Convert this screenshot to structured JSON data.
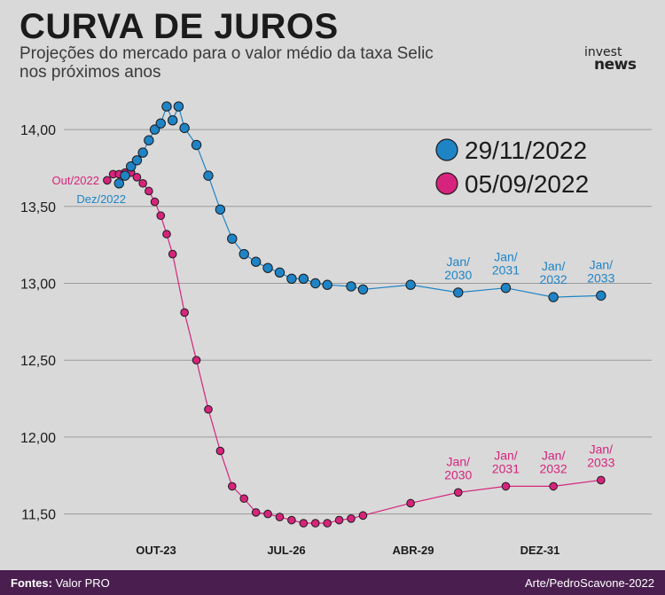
{
  "header": {
    "title": "CURVA DE JUROS",
    "subtitle": "Projeções do mercado para o valor médio da taxa Selic nos próximos anos",
    "logo_top": "invest",
    "logo_bottom": "news"
  },
  "footer": {
    "source_label": "Fontes:",
    "source_value": "Valor PRO",
    "credit": "Arte/PedroScavone-2022"
  },
  "colors": {
    "series_blue": "#1f84c6",
    "series_pink": "#d6247c",
    "grid": "#9a9a9a",
    "text": "#1b1b1b"
  },
  "chart_data": {
    "type": "line",
    "title": "CURVA DE JUROS",
    "xlabel": "",
    "ylabel": "",
    "ylim": [
      11.4,
      14.2
    ],
    "y_ticks": [
      "11,50",
      "12,00",
      "12,50",
      "13,00",
      "13,50",
      "14,00"
    ],
    "x_ticks": [
      "OUT-23",
      "JUL-26",
      "ABR-29",
      "DEZ-31"
    ],
    "grid": true,
    "legend_position": "top-right",
    "series": [
      {
        "name": "29/11/2022",
        "color": "#1f84c6",
        "start_label": "Dez/2022",
        "points": [
          [
            0,
            13.65
          ],
          [
            1,
            13.7
          ],
          [
            2,
            13.76
          ],
          [
            3,
            13.8
          ],
          [
            4,
            13.85
          ],
          [
            5,
            13.93
          ],
          [
            6,
            14.0
          ],
          [
            7,
            14.04
          ],
          [
            8,
            14.15
          ],
          [
            9,
            14.06
          ],
          [
            10,
            14.15
          ],
          [
            11,
            14.01
          ],
          [
            13,
            13.9
          ],
          [
            15,
            13.7
          ],
          [
            17,
            13.48
          ],
          [
            19,
            13.29
          ],
          [
            21,
            13.19
          ],
          [
            23,
            13.14
          ],
          [
            25,
            13.1
          ],
          [
            27,
            13.07
          ],
          [
            29,
            13.03
          ],
          [
            31,
            13.03
          ],
          [
            33,
            13.0
          ],
          [
            35,
            12.99
          ],
          [
            39,
            12.98
          ],
          [
            41,
            12.96
          ],
          [
            49,
            12.99
          ],
          [
            57,
            12.94
          ],
          [
            65,
            12.97
          ],
          [
            73,
            12.91
          ],
          [
            81,
            12.92
          ]
        ],
        "point_labels": [
          {
            "x": 57,
            "text": "Jan/ 2030"
          },
          {
            "x": 65,
            "text": "Jan/ 2031"
          },
          {
            "x": 73,
            "text": "Jan/ 2032"
          },
          {
            "x": 81,
            "text": "Jan/ 2033"
          }
        ]
      },
      {
        "name": "05/09/2022",
        "color": "#d6247c",
        "start_label": "Out/2022",
        "points": [
          [
            -2,
            13.67
          ],
          [
            -1,
            13.71
          ],
          [
            0,
            13.71
          ],
          [
            1,
            13.72
          ],
          [
            2,
            13.72
          ],
          [
            3,
            13.69
          ],
          [
            4,
            13.65
          ],
          [
            5,
            13.6
          ],
          [
            6,
            13.53
          ],
          [
            7,
            13.44
          ],
          [
            8,
            13.32
          ],
          [
            9,
            13.19
          ],
          [
            11,
            12.81
          ],
          [
            13,
            12.5
          ],
          [
            15,
            12.18
          ],
          [
            17,
            11.91
          ],
          [
            19,
            11.68
          ],
          [
            21,
            11.6
          ],
          [
            23,
            11.51
          ],
          [
            25,
            11.5
          ],
          [
            27,
            11.48
          ],
          [
            29,
            11.46
          ],
          [
            31,
            11.44
          ],
          [
            33,
            11.44
          ],
          [
            35,
            11.44
          ],
          [
            37,
            11.46
          ],
          [
            39,
            11.47
          ],
          [
            41,
            11.49
          ],
          [
            49,
            11.57
          ],
          [
            57,
            11.64
          ],
          [
            65,
            11.68
          ],
          [
            73,
            11.68
          ],
          [
            81,
            11.72
          ]
        ],
        "point_labels": [
          {
            "x": 57,
            "text": "Jan/ 2030"
          },
          {
            "x": 65,
            "text": "Jan/ 2031"
          },
          {
            "x": 73,
            "text": "Jan/ 2032"
          },
          {
            "x": 81,
            "text": "Jan/ 2033"
          }
        ]
      }
    ]
  }
}
